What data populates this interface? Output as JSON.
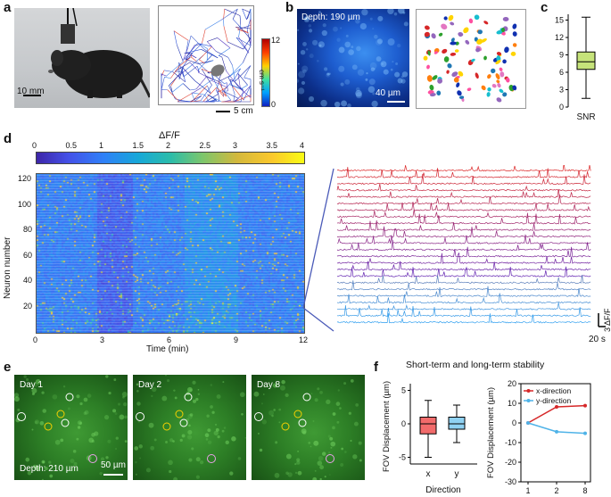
{
  "panels": {
    "a": "a",
    "b": "b",
    "c": "c",
    "d": "d",
    "e": "e",
    "f": "f"
  },
  "panel_a": {
    "scale_mouse": "10 mm",
    "scale_track": "5 cm",
    "colorbar_ticks": [
      "12",
      "0"
    ],
    "colorbar_unit": "cm s⁻¹"
  },
  "panel_b": {
    "depth": "Depth: 190 µm",
    "scale": "40 µm"
  },
  "panel_c": {
    "chart_data": {
      "type": "box",
      "categories": [
        "SNR"
      ],
      "ylim": [
        0,
        16
      ],
      "yticks": [
        "0",
        "3",
        "6",
        "9",
        "12",
        "15"
      ],
      "box": {
        "min": 1.5,
        "q1": 6.5,
        "median": 7.8,
        "q3": 9.5,
        "max": 15.5
      },
      "color": "#c6e37a"
    }
  },
  "panel_d": {
    "colorbar_title": "ΔF/F",
    "colorbar_ticks": [
      "0",
      "0.5",
      "1",
      "1.5",
      "2",
      "2.5",
      "3",
      "3.5",
      "4"
    ],
    "ylabel": "Neuron number",
    "yticks": [
      "120",
      "100",
      "80",
      "60",
      "40",
      "20"
    ],
    "xlabel": "Time (min)",
    "xticks": [
      "0",
      "3",
      "6",
      "9",
      "12"
    ],
    "scale_time": "20 s",
    "scale_amp": "3 ΔF/F"
  },
  "panel_e": {
    "day_labels": [
      "Day 1",
      "Day 2",
      "Day 8"
    ],
    "depth": "Depth: 210 µm",
    "scale": "50 µm"
  },
  "panel_f": {
    "title": "Short-term and long-term stability",
    "chart_data": [
      {
        "type": "box",
        "categories": [
          "x",
          "y"
        ],
        "xlabel": "Direction",
        "ylabel": "FOV Displacement (µm)",
        "ylim": [
          -6,
          6
        ],
        "yticks": [
          "5",
          "0",
          "-5"
        ],
        "boxes": [
          {
            "name": "x",
            "min": -5,
            "q1": -1.5,
            "median": 0,
            "q3": 1,
            "max": 3.5,
            "color": "#f26b6b"
          },
          {
            "name": "y",
            "min": -2.8,
            "q1": -0.8,
            "median": 0,
            "q3": 1,
            "max": 2.8,
            "color": "#8fd1f2"
          }
        ]
      },
      {
        "type": "line",
        "x": [
          "1",
          "2",
          "8"
        ],
        "xlabel": "Day",
        "ylabel": "FOV Displacement (µm)",
        "ylim": [
          -30,
          20
        ],
        "yticks": [
          "20",
          "10",
          "0",
          "-10",
          "-20",
          "-30"
        ],
        "legend_position": "top-right",
        "series": [
          {
            "name": "x-direction",
            "values": [
              0,
              8.2,
              8.8
            ],
            "color": "#d62728"
          },
          {
            "name": "y-direction",
            "values": [
              0,
              -4.5,
              -5.3
            ],
            "color": "#4fb3e8"
          }
        ]
      }
    ]
  }
}
